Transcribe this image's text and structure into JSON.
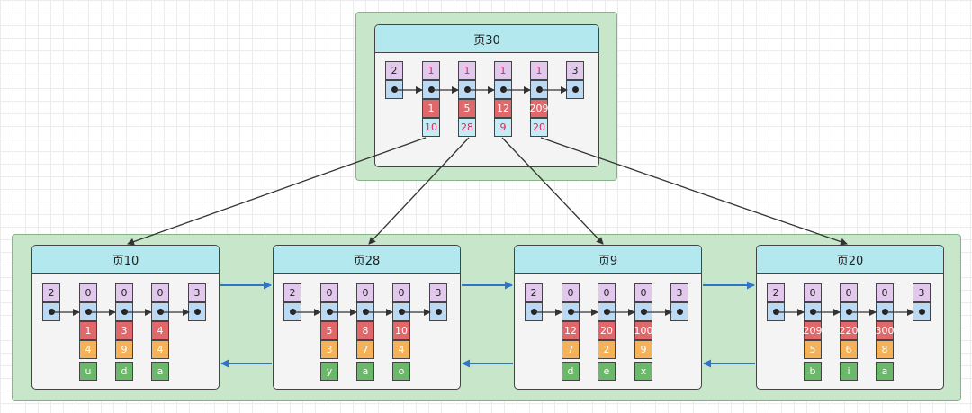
{
  "diagram": {
    "root": {
      "title": "页30",
      "records": [
        {
          "header": "2",
          "key": null,
          "pointer": null
        },
        {
          "header": "1",
          "key": "1",
          "pointer": "10"
        },
        {
          "header": "1",
          "key": "5",
          "pointer": "28"
        },
        {
          "header": "1",
          "key": "12",
          "pointer": "9"
        },
        {
          "header": "1",
          "key": "209",
          "pointer": "20"
        },
        {
          "header": "3",
          "key": null,
          "pointer": null
        }
      ]
    },
    "leaves": [
      {
        "title": "页10",
        "records": [
          {
            "header": "2"
          },
          {
            "header": "0",
            "id": "1",
            "c1": "4",
            "c2": "u"
          },
          {
            "header": "0",
            "id": "3",
            "c1": "9",
            "c2": "d"
          },
          {
            "header": "0",
            "id": "4",
            "c1": "4",
            "c2": "a"
          },
          {
            "header": "3"
          }
        ]
      },
      {
        "title": "页28",
        "records": [
          {
            "header": "2"
          },
          {
            "header": "0",
            "id": "5",
            "c1": "3",
            "c2": "y"
          },
          {
            "header": "0",
            "id": "8",
            "c1": "7",
            "c2": "a"
          },
          {
            "header": "0",
            "id": "10",
            "c1": "4",
            "c2": "o"
          },
          {
            "header": "3"
          }
        ]
      },
      {
        "title": "页9",
        "records": [
          {
            "header": "2"
          },
          {
            "header": "0",
            "id": "12",
            "c1": "7",
            "c2": "d"
          },
          {
            "header": "0",
            "id": "20",
            "c1": "2",
            "c2": "e"
          },
          {
            "header": "0",
            "id": "100",
            "c1": "9",
            "c2": "x"
          },
          {
            "header": "3"
          }
        ]
      },
      {
        "title": "页20",
        "records": [
          {
            "header": "2"
          },
          {
            "header": "0",
            "id": "209",
            "c1": "5",
            "c2": "b"
          },
          {
            "header": "0",
            "id": "220",
            "c1": "6",
            "c2": "i"
          },
          {
            "header": "0",
            "id": "300",
            "c1": "8",
            "c2": "a"
          },
          {
            "header": "3"
          }
        ]
      }
    ]
  },
  "colors": {
    "green_region": "#c8e6c9",
    "title_bar": "#b3e8ef",
    "header_cell": "#e1c8ec",
    "pointer_cell": "#bcd9f4",
    "key_cell": "#e0686a",
    "col1_cell": "#f5b258",
    "col2_cell": "#6cb86a",
    "child_ptr_cell": "#c5ecf4",
    "sibling_arrow": "#2f74c8"
  }
}
